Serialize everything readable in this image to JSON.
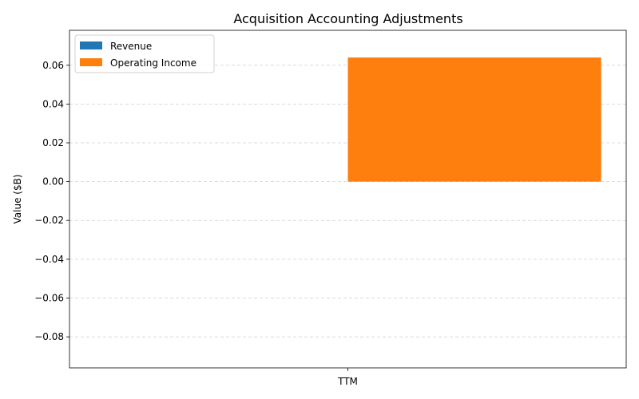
{
  "chart_data": {
    "type": "bar",
    "title": "Acquisition Accounting Adjustments",
    "xlabel": "",
    "ylabel": "Value ($B)",
    "categories": [
      "TTM"
    ],
    "series": [
      {
        "name": "Revenue",
        "values": [
          0.0
        ],
        "color": "#1f77b4"
      },
      {
        "name": "Operating Income",
        "values": [
          0.064
        ],
        "color": "#ff7f0e"
      }
    ],
    "ylim": [
      -0.096,
      0.078
    ],
    "yticks": [
      "−0.08",
      "−0.06",
      "−0.04",
      "−0.02",
      "0.00",
      "0.02",
      "0.04",
      "0.06"
    ],
    "ytick_values": [
      -0.08,
      -0.06,
      -0.04,
      -0.02,
      0.0,
      0.02,
      0.04,
      0.06
    ],
    "grid": "y-dashed",
    "legend_position": "top-left"
  }
}
